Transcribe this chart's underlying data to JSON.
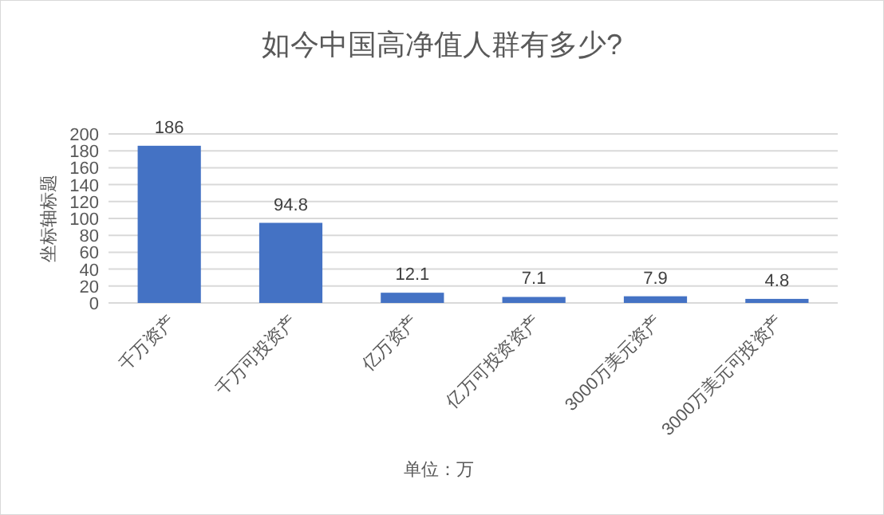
{
  "chart_data": {
    "type": "bar",
    "title": "如今中国高净值人群有多少?",
    "ylabel": "坐标轴标题",
    "xlabel": "单位：万",
    "categories": [
      "千万资产",
      "千万可投资产",
      "亿万资产",
      "亿万可投资资产",
      "3000万美元资产",
      "3000万美元可投资产"
    ],
    "values": [
      186,
      94.8,
      12.1,
      7.1,
      7.9,
      4.8
    ],
    "color": "#4472c4",
    "ylim": [
      0,
      200
    ],
    "yticks": [
      0,
      20,
      40,
      60,
      80,
      100,
      120,
      140,
      160,
      180,
      200
    ],
    "grid": "y",
    "data_labels": true
  }
}
